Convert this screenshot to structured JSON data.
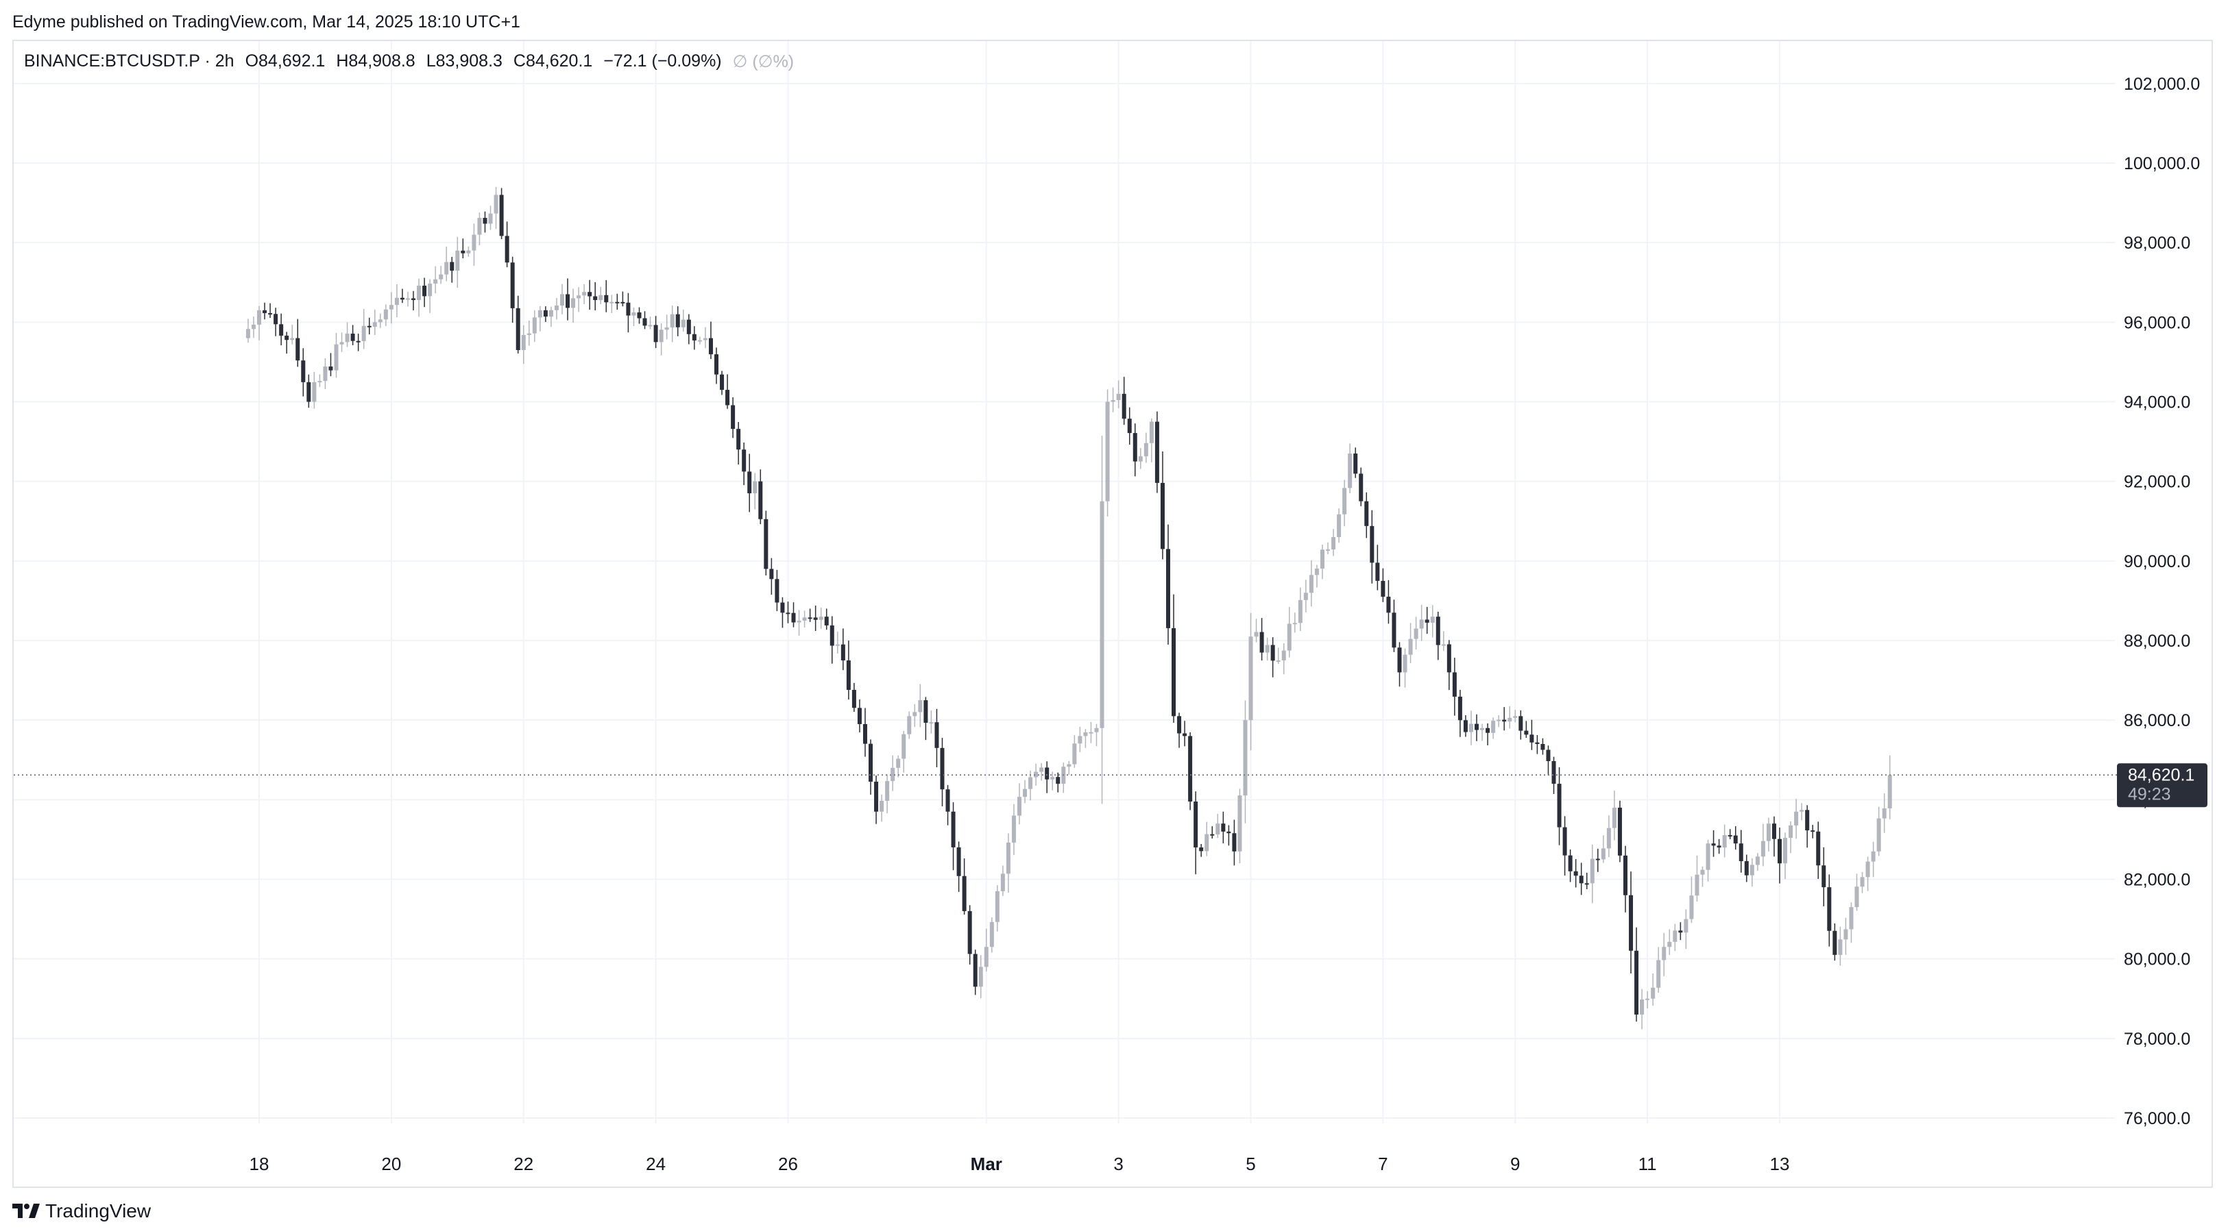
{
  "header": {
    "published": "Edyme published on TradingView.com, Mar 14, 2025 18:10 UTC+1"
  },
  "legend": {
    "symbol": "BINANCE:BTCUSDT.P · 2h",
    "open": "O84,692.1",
    "high": "H84,908.8",
    "low": "L83,908.3",
    "close": "C84,620.1",
    "change": "−72.1 (−0.09%)",
    "extra": "∅ (∅%)"
  },
  "price_label": {
    "value": "84,620.1",
    "countdown": "49:23"
  },
  "footer": {
    "brand": "TradingView"
  },
  "colors": {
    "up": "#b2b5be",
    "down": "#2a2e39",
    "grid": "#f0f3fa",
    "price_line": "#787b86",
    "label_bg": "#2a2e39"
  },
  "chart_data": {
    "type": "candlestick",
    "title": "",
    "xlabel": "",
    "ylabel": "",
    "ylim": [
      75000,
      103000
    ],
    "grid": true,
    "y_ticks": [
      "102,000.0",
      "100,000.0",
      "98,000.0",
      "96,000.0",
      "94,000.0",
      "92,000.0",
      "90,000.0",
      "88,000.0",
      "86,000.0",
      "84,000.0",
      "82,000.0",
      "80,000.0",
      "78,000.0",
      "76,000.0"
    ],
    "x_ticks": [
      {
        "label": "18",
        "date": "2025-02-18"
      },
      {
        "label": "20",
        "date": "2025-02-20"
      },
      {
        "label": "22",
        "date": "2025-02-22"
      },
      {
        "label": "24",
        "date": "2025-02-24"
      },
      {
        "label": "26",
        "date": "2025-02-26"
      },
      {
        "label": "Mar",
        "date": "2025-03-01"
      },
      {
        "label": "3",
        "date": "2025-03-03"
      },
      {
        "label": "5",
        "date": "2025-03-05"
      },
      {
        "label": "7",
        "date": "2025-03-07"
      },
      {
        "label": "9",
        "date": "2025-03-09"
      },
      {
        "label": "11",
        "date": "2025-03-11"
      },
      {
        "label": "13",
        "date": "2025-03-13"
      }
    ],
    "last_price": 84620.1,
    "key_points": [
      {
        "date": "2025-02-17 18:00",
        "close": 95600
      },
      {
        "date": "2025-02-18 00:00",
        "close": 96300
      },
      {
        "date": "2025-02-18 12:00",
        "close": 95600
      },
      {
        "date": "2025-02-18 18:00",
        "close": 94000
      },
      {
        "date": "2025-02-19 06:00",
        "close": 95500
      },
      {
        "date": "2025-02-19 18:00",
        "close": 96000
      },
      {
        "date": "2025-02-20 06:00",
        "close": 96600
      },
      {
        "date": "2025-02-20 18:00",
        "close": 97200
      },
      {
        "date": "2025-02-21 06:00",
        "close": 98200
      },
      {
        "date": "2025-02-21 14:00",
        "close": 99200
      },
      {
        "date": "2025-02-21 18:00",
        "close": 97500
      },
      {
        "date": "2025-02-21 22:00",
        "close": 95300
      },
      {
        "date": "2025-02-22 06:00",
        "close": 96300
      },
      {
        "date": "2025-02-22 18:00",
        "close": 96600
      },
      {
        "date": "2025-02-23 06:00",
        "close": 96500
      },
      {
        "date": "2025-02-23 18:00",
        "close": 96100
      },
      {
        "date": "2025-02-24 00:00",
        "close": 95500
      },
      {
        "date": "2025-02-24 06:00",
        "close": 96200
      },
      {
        "date": "2025-02-24 12:00",
        "close": 95700
      },
      {
        "date": "2025-02-24 18:00",
        "close": 95600
      },
      {
        "date": "2025-02-25 00:00",
        "close": 94300
      },
      {
        "date": "2025-02-25 06:00",
        "close": 92800
      },
      {
        "date": "2025-02-25 10:00",
        "close": 91700
      },
      {
        "date": "2025-02-25 12:00",
        "close": 92000
      },
      {
        "date": "2025-02-25 16:00",
        "close": 89800
      },
      {
        "date": "2025-02-25 22:00",
        "close": 88700
      },
      {
        "date": "2025-02-26 04:00",
        "close": 88500
      },
      {
        "date": "2025-02-26 12:00",
        "close": 88600
      },
      {
        "date": "2025-02-26 20:00",
        "close": 87500
      },
      {
        "date": "2025-02-27 02:00",
        "close": 85900
      },
      {
        "date": "2025-02-27 08:00",
        "close": 83700
      },
      {
        "date": "2025-02-27 14:00",
        "close": 84800
      },
      {
        "date": "2025-02-27 20:00",
        "close": 86100
      },
      {
        "date": "2025-02-28 00:00",
        "close": 86500
      },
      {
        "date": "2025-02-28 06:00",
        "close": 85300
      },
      {
        "date": "2025-02-28 10:00",
        "close": 83700
      },
      {
        "date": "2025-02-28 16:00",
        "close": 81200
      },
      {
        "date": "2025-02-28 20:00",
        "close": 79300
      },
      {
        "date": "2025-03-01 00:00",
        "close": 80300
      },
      {
        "date": "2025-03-01 04:00",
        "close": 81700
      },
      {
        "date": "2025-03-01 10:00",
        "close": 83600
      },
      {
        "date": "2025-03-01 18:00",
        "close": 84700
      },
      {
        "date": "2025-03-02 02:00",
        "close": 84400
      },
      {
        "date": "2025-03-02 10:00",
        "close": 85600
      },
      {
        "date": "2025-03-02 16:00",
        "close": 85800
      },
      {
        "date": "2025-03-02 18:00",
        "close": 91500
      },
      {
        "date": "2025-03-02 20:00",
        "close": 94000
      },
      {
        "date": "2025-03-03 00:00",
        "close": 94200
      },
      {
        "date": "2025-03-03 06:00",
        "close": 92500
      },
      {
        "date": "2025-03-03 12:00",
        "close": 93500
      },
      {
        "date": "2025-03-03 16:00",
        "close": 90300
      },
      {
        "date": "2025-03-03 20:00",
        "close": 86100
      },
      {
        "date": "2025-03-04 00:00",
        "close": 85600
      },
      {
        "date": "2025-03-04 04:00",
        "close": 82800
      },
      {
        "date": "2025-03-04 12:00",
        "close": 83400
      },
      {
        "date": "2025-03-04 18:00",
        "close": 82700
      },
      {
        "date": "2025-03-04 22:00",
        "close": 86000
      },
      {
        "date": "2025-03-05 00:00",
        "close": 88100
      },
      {
        "date": "2025-03-05 10:00",
        "close": 87500
      },
      {
        "date": "2025-03-05 20:00",
        "close": 89200
      },
      {
        "date": "2025-03-06 06:00",
        "close": 90600
      },
      {
        "date": "2025-03-06 12:00",
        "close": 92700
      },
      {
        "date": "2025-03-06 16:00",
        "close": 91500
      },
      {
        "date": "2025-03-06 22:00",
        "close": 89500
      },
      {
        "date": "2025-03-07 02:00",
        "close": 88700
      },
      {
        "date": "2025-03-07 06:00",
        "close": 87200
      },
      {
        "date": "2025-03-07 12:00",
        "close": 88300
      },
      {
        "date": "2025-03-07 18:00",
        "close": 88600
      },
      {
        "date": "2025-03-08 00:00",
        "close": 87200
      },
      {
        "date": "2025-03-08 06:00",
        "close": 85700
      },
      {
        "date": "2025-03-08 12:00",
        "close": 85800
      },
      {
        "date": "2025-03-09 00:00",
        "close": 86100
      },
      {
        "date": "2025-03-09 08:00",
        "close": 85400
      },
      {
        "date": "2025-03-09 14:00",
        "close": 84400
      },
      {
        "date": "2025-03-09 18:00",
        "close": 82600
      },
      {
        "date": "2025-03-10 00:00",
        "close": 81900
      },
      {
        "date": "2025-03-10 06:00",
        "close": 82500
      },
      {
        "date": "2025-03-10 12:00",
        "close": 83800
      },
      {
        "date": "2025-03-10 16:00",
        "close": 81600
      },
      {
        "date": "2025-03-10 20:00",
        "close": 78600
      },
      {
        "date": "2025-03-11 00:00",
        "close": 79000
      },
      {
        "date": "2025-03-11 06:00",
        "close": 80300
      },
      {
        "date": "2025-03-11 14:00",
        "close": 81000
      },
      {
        "date": "2025-03-11 22:00",
        "close": 82900
      },
      {
        "date": "2025-03-12 06:00",
        "close": 83100
      },
      {
        "date": "2025-03-12 12:00",
        "close": 82100
      },
      {
        "date": "2025-03-12 20:00",
        "close": 83400
      },
      {
        "date": "2025-03-13 00:00",
        "close": 82400
      },
      {
        "date": "2025-03-13 06:00",
        "close": 83700
      },
      {
        "date": "2025-03-13 12:00",
        "close": 83200
      },
      {
        "date": "2025-03-13 16:00",
        "close": 81800
      },
      {
        "date": "2025-03-13 20:00",
        "close": 80100
      },
      {
        "date": "2025-03-14 02:00",
        "close": 81300
      },
      {
        "date": "2025-03-14 10:00",
        "close": 82700
      },
      {
        "date": "2025-03-14 16:00",
        "close": 84620.1
      }
    ]
  }
}
